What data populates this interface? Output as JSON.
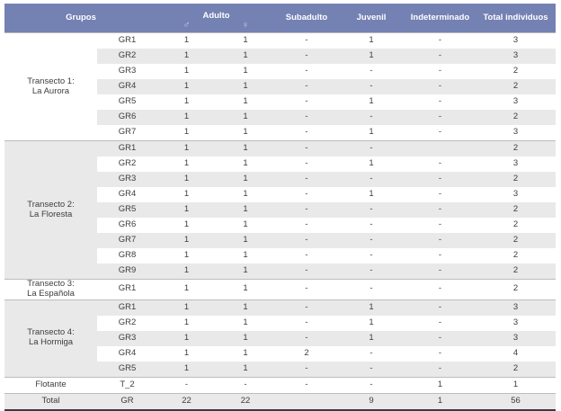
{
  "table": {
    "header": {
      "grupos": "Grupos",
      "adulto": "Adulto",
      "male_symbol": "♂",
      "female_symbol": "♀",
      "subadulto": "Subadulto",
      "juvenil": "Juvenil",
      "indeterminado": "Indeterminado",
      "total_individuos": "Total individuos"
    },
    "colors": {
      "header_bg": "#7481b3",
      "header_text": "#ffffff",
      "alt_row_bg": "#e9e9e9",
      "section_divider": "#bdbdbd",
      "bottom_border": "#3a3a46",
      "body_text": "#3d3d3d"
    },
    "sections": [
      {
        "label_lines": [
          "Transecto 1:",
          "La Aurora"
        ],
        "rows": [
          {
            "group": "GR1",
            "values": [
              "1",
              "1",
              "-",
              "1",
              "-",
              "3"
            ]
          },
          {
            "group": "GR2",
            "values": [
              "1",
              "1",
              "-",
              "1",
              "-",
              "3"
            ]
          },
          {
            "group": "GR3",
            "values": [
              "1",
              "1",
              "-",
              "-",
              "-",
              "2"
            ]
          },
          {
            "group": "GR4",
            "values": [
              "1",
              "1",
              "-",
              "-",
              "-",
              "2"
            ]
          },
          {
            "group": "GR5",
            "values": [
              "1",
              "1",
              "-",
              "1",
              "-",
              "3"
            ]
          },
          {
            "group": "GR6",
            "values": [
              "1",
              "1",
              "-",
              "-",
              "-",
              "2"
            ]
          },
          {
            "group": "GR7",
            "values": [
              "1",
              "1",
              "-",
              "1",
              "-",
              "3"
            ]
          }
        ]
      },
      {
        "label_lines": [
          "Transecto 2:",
          "La Floresta"
        ],
        "rows": [
          {
            "group": "GR1",
            "values": [
              "1",
              "1",
              "-",
              "-",
              "",
              "2"
            ]
          },
          {
            "group": "GR2",
            "values": [
              "1",
              "1",
              "-",
              "1",
              "-",
              "3"
            ]
          },
          {
            "group": "GR3",
            "values": [
              "1",
              "1",
              "-",
              "-",
              "-",
              "2"
            ]
          },
          {
            "group": "GR4",
            "values": [
              "1",
              "1",
              "-",
              "1",
              "-",
              "3"
            ]
          },
          {
            "group": "GR5",
            "values": [
              "1",
              "1",
              "-",
              "-",
              "-",
              "2"
            ]
          },
          {
            "group": "GR6",
            "values": [
              "1",
              "1",
              "-",
              "-",
              "-",
              "2"
            ]
          },
          {
            "group": "GR7",
            "values": [
              "1",
              "1",
              "-",
              "-",
              "-",
              "2"
            ]
          },
          {
            "group": "GR8",
            "values": [
              "1",
              "1",
              "-",
              "-",
              "-",
              "2"
            ]
          },
          {
            "group": "GR9",
            "values": [
              "1",
              "1",
              "-",
              "-",
              "-",
              "2"
            ]
          }
        ]
      },
      {
        "label_lines": [
          "Transecto 3:",
          "La Española"
        ],
        "rows": [
          {
            "group": "GR1",
            "values": [
              "1",
              "1",
              "-",
              "-",
              "-",
              "2"
            ]
          }
        ]
      },
      {
        "label_lines": [
          "Transecto 4:",
          "La Hormiga"
        ],
        "rows": [
          {
            "group": "GR1",
            "values": [
              "1",
              "1",
              "-",
              "1",
              "-",
              "3"
            ]
          },
          {
            "group": "GR2",
            "values": [
              "1",
              "1",
              "-",
              "1",
              "-",
              "3"
            ]
          },
          {
            "group": "GR3",
            "values": [
              "1",
              "1",
              "-",
              "1",
              "-",
              "3"
            ]
          },
          {
            "group": "GR4",
            "values": [
              "1",
              "1",
              "2",
              "-",
              "-",
              "4"
            ]
          },
          {
            "group": "GR5",
            "values": [
              "1",
              "1",
              "-",
              "-",
              "-",
              "2"
            ]
          }
        ]
      },
      {
        "label_lines": [
          "Flotante"
        ],
        "rows": [
          {
            "group": "T_2",
            "values": [
              "-",
              "-",
              "-",
              "-",
              "1",
              "1"
            ]
          }
        ]
      },
      {
        "label_lines": [
          "Total"
        ],
        "rows": [
          {
            "group": "GR",
            "values": [
              "22",
              "22",
              "",
              "9",
              "1",
              "56"
            ]
          }
        ]
      }
    ]
  }
}
